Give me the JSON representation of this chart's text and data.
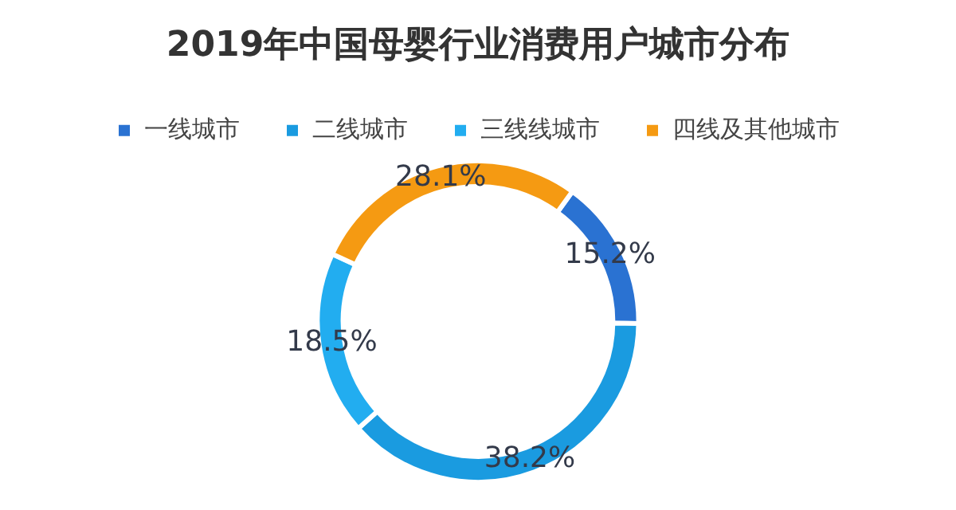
{
  "chart_data": {
    "type": "donut",
    "title": "2019年中国母婴行业消费用户城市分布",
    "categories": [
      "一线城市",
      "二线城市",
      "三线线城市",
      "四线及其他城市"
    ],
    "values": [
      15.2,
      38.2,
      18.5,
      28.1
    ],
    "colors": [
      "#2a72d2",
      "#1a9be0",
      "#22adf0",
      "#f59a12"
    ],
    "value_labels": [
      "15.2%",
      "38.2%",
      "18.5%",
      "28.1%"
    ],
    "legend": "top"
  }
}
